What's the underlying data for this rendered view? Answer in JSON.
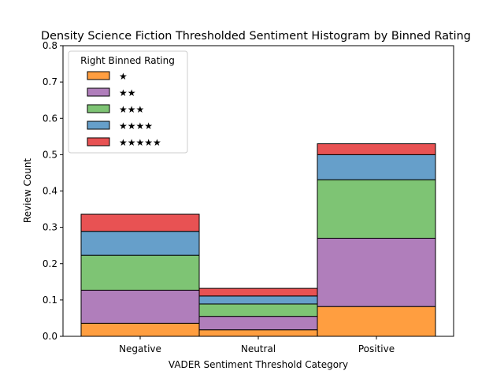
{
  "chart_data": {
    "type": "bar",
    "stacked": true,
    "title": "Density Science Fiction Thresholded Sentiment Histogram by Binned Rating",
    "xlabel": "VADER Sentiment Threshold Category",
    "ylabel": "Review Count",
    "categories": [
      "Negative",
      "Neutral",
      "Positive"
    ],
    "ylim": [
      0,
      0.8
    ],
    "yticks": [
      "0.0",
      "0.1",
      "0.2",
      "0.3",
      "0.4",
      "0.5",
      "0.6",
      "0.7",
      "0.8"
    ],
    "grid": false,
    "legend": {
      "title": "Right Binned Rating",
      "placement": "top-left"
    },
    "series": [
      {
        "name": "★",
        "color": "#ff9e40",
        "values": [
          0.036,
          0.018,
          0.082
        ]
      },
      {
        "name": "★★",
        "color": "#b07ebb",
        "values": [
          0.091,
          0.037,
          0.188
        ]
      },
      {
        "name": "★★★",
        "color": "#7ec474",
        "values": [
          0.096,
          0.034,
          0.161
        ]
      },
      {
        "name": "★★★★",
        "color": "#669fca",
        "values": [
          0.066,
          0.022,
          0.069
        ]
      },
      {
        "name": "★★★★★",
        "color": "#e85253",
        "values": [
          0.047,
          0.021,
          0.03
        ]
      }
    ]
  }
}
